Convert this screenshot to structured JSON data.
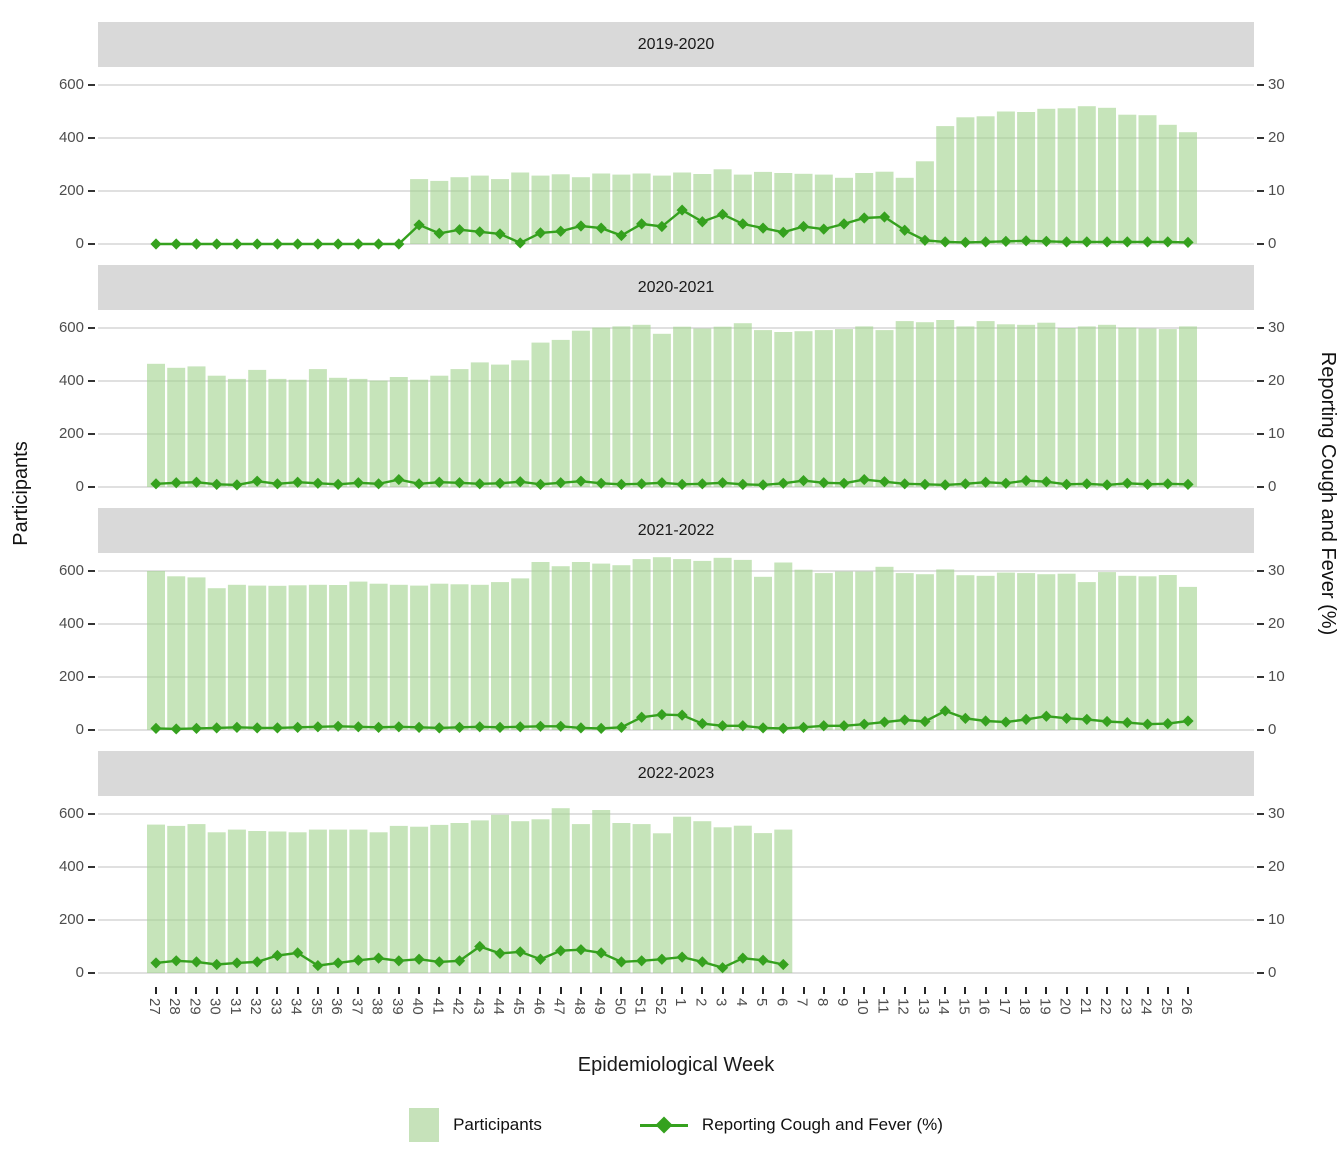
{
  "colors": {
    "bar_fill_rgba": "rgba(163,211,143,0.62)",
    "bar_flat": "#c6e2ba",
    "line": "#35a11e",
    "strip_bg": "#d9d9d9",
    "gridline": "#cdcdcd",
    "axis_text": "#4d4d4d",
    "tick_mark": "#262626"
  },
  "legend": {
    "participants_label": "Participants",
    "line_label": "Reporting Cough and Fever (%)"
  },
  "chart_data": {
    "type": "bar+line",
    "grid": "horizontal-only",
    "legend_position": "bottom",
    "x_axis": {
      "title": "Epidemiological Week"
    },
    "left_axis": {
      "title": "Participants",
      "ticks": [
        600,
        400,
        200,
        0
      ],
      "range": [
        0,
        650
      ]
    },
    "right_axis": {
      "title": "Reporting Cough and Fever (%)",
      "ticks": [
        30,
        20,
        10,
        0
      ],
      "range": [
        0,
        32.5
      ]
    },
    "categories": [
      "27",
      "28",
      "29",
      "30",
      "31",
      "32",
      "33",
      "34",
      "35",
      "36",
      "37",
      "38",
      "39",
      "40",
      "41",
      "42",
      "43",
      "44",
      "45",
      "46",
      "47",
      "48",
      "49",
      "50",
      "51",
      "52",
      "1",
      "2",
      "3",
      "4",
      "5",
      "6",
      "7",
      "8",
      "9",
      "10",
      "11",
      "12",
      "13",
      "14",
      "15",
      "16",
      "17",
      "18",
      "19",
      "20",
      "21",
      "22",
      "23",
      "24",
      "25",
      "26"
    ],
    "facets": [
      {
        "label": "2019-2020",
        "participants": [
          null,
          null,
          null,
          null,
          null,
          null,
          null,
          null,
          null,
          null,
          null,
          null,
          null,
          245,
          238,
          252,
          258,
          245,
          270,
          258,
          263,
          252,
          266,
          262,
          266,
          258,
          270,
          264,
          282,
          262,
          272,
          268,
          265,
          262,
          250,
          268,
          273,
          250,
          312,
          445,
          478,
          482,
          500,
          498,
          510,
          512,
          520,
          514,
          488,
          486,
          450,
          422
        ],
        "pct_cough_fever": [
          0,
          0,
          0,
          0,
          0,
          0,
          0,
          0,
          0,
          0,
          0,
          0,
          0,
          3.6,
          2.0,
          2.7,
          2.3,
          1.9,
          0.2,
          2.1,
          2.4,
          3.4,
          3.0,
          1.6,
          3.8,
          3.3,
          6.4,
          4.2,
          5.6,
          3.8,
          3.0,
          2.2,
          3.3,
          2.8,
          3.8,
          4.9,
          5.1,
          2.6,
          0.7,
          0.4,
          0.3,
          0.4,
          0.5,
          0.6,
          0.5,
          0.4,
          0.4,
          0.4,
          0.4,
          0.4,
          0.4,
          0.3
        ]
      },
      {
        "label": "2020-2021",
        "participants": [
          465,
          450,
          455,
          420,
          408,
          442,
          408,
          405,
          445,
          412,
          408,
          402,
          415,
          405,
          420,
          445,
          470,
          462,
          478,
          545,
          555,
          590,
          602,
          606,
          612,
          578,
          605,
          598,
          605,
          618,
          592,
          585,
          588,
          592,
          596,
          606,
          592,
          626,
          622,
          630,
          606,
          626,
          614,
          612,
          620,
          600,
          606,
          612,
          602,
          598,
          596,
          606
        ],
        "pct_cough_fever": [
          0.6,
          0.8,
          0.9,
          0.5,
          0.4,
          1.1,
          0.6,
          0.9,
          0.7,
          0.5,
          0.8,
          0.6,
          1.4,
          0.6,
          0.9,
          0.8,
          0.6,
          0.7,
          1.0,
          0.5,
          0.8,
          1.1,
          0.7,
          0.5,
          0.6,
          0.8,
          0.5,
          0.6,
          0.8,
          0.5,
          0.4,
          0.7,
          1.2,
          0.8,
          0.7,
          1.4,
          1.0,
          0.6,
          0.5,
          0.4,
          0.6,
          0.9,
          0.7,
          1.2,
          1.0,
          0.5,
          0.6,
          0.4,
          0.7,
          0.5,
          0.6,
          0.5
        ]
      },
      {
        "label": "2021-2022",
        "participants": [
          600,
          580,
          576,
          535,
          548,
          545,
          544,
          546,
          548,
          547,
          560,
          552,
          548,
          545,
          552,
          550,
          548,
          558,
          572,
          634,
          618,
          634,
          628,
          622,
          645,
          652,
          645,
          638,
          650,
          642,
          578,
          632,
          605,
          592,
          598,
          598,
          616,
          592,
          588,
          606,
          584,
          582,
          594,
          592,
          588,
          590,
          558,
          596,
          582,
          580,
          585,
          540
        ],
        "pct_cough_fever": [
          0.3,
          0.2,
          0.3,
          0.4,
          0.5,
          0.4,
          0.4,
          0.5,
          0.6,
          0.7,
          0.6,
          0.5,
          0.6,
          0.5,
          0.4,
          0.5,
          0.6,
          0.5,
          0.6,
          0.7,
          0.7,
          0.4,
          0.3,
          0.5,
          2.4,
          2.9,
          2.8,
          1.2,
          0.8,
          0.8,
          0.4,
          0.3,
          0.5,
          0.8,
          0.8,
          1.1,
          1.5,
          1.9,
          1.6,
          3.6,
          2.2,
          1.7,
          1.5,
          2.0,
          2.6,
          2.2,
          2.0,
          1.6,
          1.4,
          1.1,
          1.2,
          1.7
        ]
      },
      {
        "label": "2022-2023",
        "participants": [
          560,
          555,
          562,
          531,
          541,
          536,
          534,
          531,
          541,
          541,
          541,
          531,
          555,
          552,
          559,
          566,
          576,
          597,
          573,
          580,
          622,
          562,
          615,
          566,
          562,
          527,
          590,
          573,
          550,
          556,
          528,
          541,
          null,
          null,
          null,
          null,
          null,
          null,
          null,
          null,
          null,
          null,
          null,
          null,
          null,
          null,
          null,
          null,
          null,
          null,
          null,
          null
        ],
        "pct_cough_fever": [
          1.9,
          2.3,
          2.1,
          1.6,
          1.9,
          2.1,
          3.3,
          3.8,
          1.4,
          1.9,
          2.4,
          2.8,
          2.3,
          2.6,
          2.1,
          2.3,
          5.0,
          3.7,
          4.0,
          2.6,
          4.2,
          4.4,
          3.8,
          2.1,
          2.3,
          2.6,
          3.0,
          2.1,
          1.0,
          2.8,
          2.4,
          1.6,
          null,
          null,
          null,
          null,
          null,
          null,
          null,
          null,
          null,
          null,
          null,
          null,
          null,
          null,
          null,
          null,
          null,
          null,
          null,
          null
        ]
      }
    ]
  }
}
